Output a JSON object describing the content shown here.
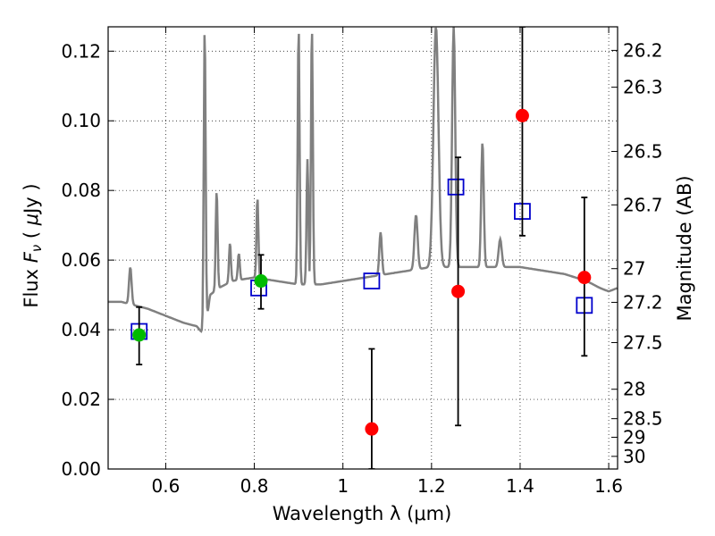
{
  "chart_data": {
    "type": "scatter",
    "xlabel": "Wavelength  λ (μm)",
    "ylabel_parts": [
      "Flux ",
      "F",
      "ν",
      " ( ",
      "μ",
      "Jy )"
    ],
    "ylabel_right": "Magnitude (AB)",
    "xlim": [
      0.47,
      1.62
    ],
    "ylim": [
      0.0,
      0.127
    ],
    "grid": true,
    "grid_style": "dotted",
    "x_ticks": [
      {
        "value": 0.6,
        "label": "0.6"
      },
      {
        "value": 0.8,
        "label": "0.8"
      },
      {
        "value": 1.0,
        "label": "1"
      },
      {
        "value": 1.2,
        "label": "1.2"
      },
      {
        "value": 1.4,
        "label": "1.4"
      },
      {
        "value": 1.6,
        "label": "1.6"
      }
    ],
    "y_ticks": [
      {
        "value": 0.0,
        "label": "0.00"
      },
      {
        "value": 0.02,
        "label": "0.02"
      },
      {
        "value": 0.04,
        "label": "0.04"
      },
      {
        "value": 0.06,
        "label": "0.06"
      },
      {
        "value": 0.08,
        "label": "0.08"
      },
      {
        "value": 0.1,
        "label": "0.10"
      },
      {
        "value": 0.12,
        "label": "0.12"
      }
    ],
    "right_ticks": [
      {
        "label": "26.2",
        "mag": 26.2
      },
      {
        "label": "26.3",
        "mag": 26.3
      },
      {
        "label": "26.5",
        "mag": 26.5
      },
      {
        "label": "26.7",
        "mag": 26.7
      },
      {
        "label": "27",
        "mag": 27.0
      },
      {
        "label": "27.2",
        "mag": 27.2
      },
      {
        "label": "27.5",
        "mag": 27.5
      },
      {
        "label": "28",
        "mag": 28.0
      },
      {
        "label": "28.5",
        "mag": 28.5
      },
      {
        "label": "29",
        "mag": 29.0
      },
      {
        "label": "30",
        "mag": 30.0
      }
    ],
    "series": [
      {
        "kind": "spectrum",
        "color": "#808080",
        "continuum": [
          [
            0.47,
            0.048
          ],
          [
            0.5,
            0.048
          ],
          [
            0.53,
            0.047
          ],
          [
            0.56,
            0.046
          ],
          [
            0.6,
            0.044
          ],
          [
            0.64,
            0.042
          ],
          [
            0.67,
            0.041
          ],
          [
            0.683,
            0.039
          ],
          [
            0.69,
            0.04
          ],
          [
            0.7,
            0.05
          ],
          [
            0.72,
            0.052
          ],
          [
            0.75,
            0.054
          ],
          [
            0.8,
            0.055
          ],
          [
            0.85,
            0.054
          ],
          [
            0.9,
            0.053
          ],
          [
            0.95,
            0.053
          ],
          [
            1.0,
            0.054
          ],
          [
            1.05,
            0.055
          ],
          [
            1.1,
            0.056
          ],
          [
            1.15,
            0.057
          ],
          [
            1.2,
            0.058
          ],
          [
            1.25,
            0.058
          ],
          [
            1.3,
            0.058
          ],
          [
            1.35,
            0.058
          ],
          [
            1.4,
            0.058
          ],
          [
            1.45,
            0.057
          ],
          [
            1.5,
            0.056
          ],
          [
            1.55,
            0.054
          ],
          [
            1.58,
            0.052
          ],
          [
            1.6,
            0.051
          ],
          [
            1.62,
            0.052
          ]
        ],
        "lines": [
          {
            "x": 0.52,
            "peak": 0.058,
            "width": 0.004
          },
          {
            "x": 0.688,
            "peak": 0.127,
            "width": 0.003
          },
          {
            "x": 0.715,
            "peak": 0.08,
            "width": 0.003
          },
          {
            "x": 0.745,
            "peak": 0.065,
            "width": 0.003
          },
          {
            "x": 0.765,
            "peak": 0.062,
            "width": 0.003
          },
          {
            "x": 0.807,
            "peak": 0.078,
            "width": 0.003
          },
          {
            "x": 0.9,
            "peak": 0.127,
            "width": 0.003
          },
          {
            "x": 0.92,
            "peak": 0.089,
            "width": 0.003
          },
          {
            "x": 0.93,
            "peak": 0.127,
            "width": 0.003
          },
          {
            "x": 1.085,
            "peak": 0.068,
            "width": 0.004
          },
          {
            "x": 1.165,
            "peak": 0.073,
            "width": 0.005
          },
          {
            "x": 1.21,
            "peak": 0.127,
            "width": 0.008
          },
          {
            "x": 1.25,
            "peak": 0.127,
            "width": 0.005
          },
          {
            "x": 1.315,
            "peak": 0.094,
            "width": 0.004
          },
          {
            "x": 1.355,
            "peak": 0.066,
            "width": 0.005
          }
        ]
      },
      {
        "kind": "squares",
        "color": "#0000cc",
        "points": [
          {
            "x": 0.54,
            "y": 0.0395
          },
          {
            "x": 0.81,
            "y": 0.052
          },
          {
            "x": 1.065,
            "y": 0.054
          },
          {
            "x": 1.255,
            "y": 0.081
          },
          {
            "x": 1.405,
            "y": 0.074
          },
          {
            "x": 1.545,
            "y": 0.047
          }
        ]
      },
      {
        "kind": "points",
        "color": "#00bb00",
        "points": [
          {
            "x": 0.54,
            "y": 0.0385,
            "err_low": 0.03,
            "err_high": 0.0465
          },
          {
            "x": 0.815,
            "y": 0.054,
            "err_low": 0.046,
            "err_high": 0.0615
          }
        ]
      },
      {
        "kind": "points",
        "color": "#ff0000",
        "points": [
          {
            "x": 1.065,
            "y": 0.0115,
            "err_low": 0.0,
            "err_high": 0.0345
          },
          {
            "x": 1.26,
            "y": 0.051,
            "err_low": 0.0125,
            "err_high": 0.0895
          },
          {
            "x": 1.405,
            "y": 0.1015,
            "err_low": 0.067,
            "err_high": 0.127
          },
          {
            "x": 1.545,
            "y": 0.055,
            "err_low": 0.0325,
            "err_high": 0.078
          }
        ]
      }
    ]
  }
}
